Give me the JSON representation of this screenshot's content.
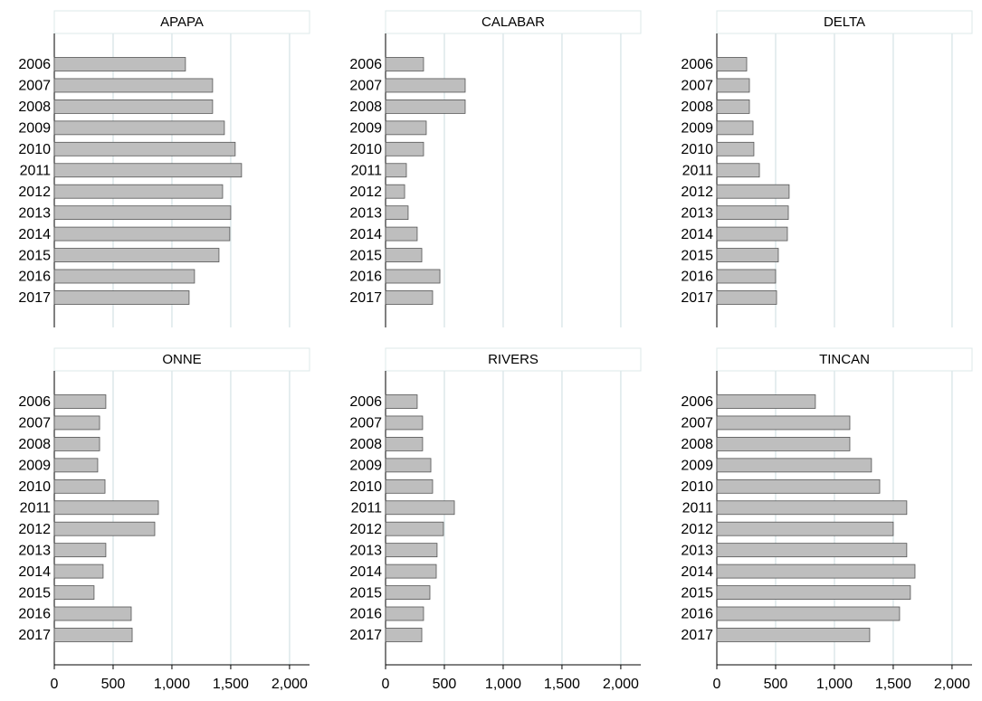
{
  "chart_data": [
    {
      "type": "bar",
      "orientation": "horizontal",
      "title": "APAPA",
      "color": "#bebebe",
      "grid": true,
      "categories": [
        "2006",
        "2007",
        "2008",
        "2009",
        "2010",
        "2011",
        "2012",
        "2013",
        "2014",
        "2015",
        "2016",
        "2017"
      ],
      "values": [
        1115,
        1346,
        1346,
        1446,
        1538,
        1592,
        1431,
        1500,
        1492,
        1400,
        1192,
        1146
      ],
      "xlim": [
        0,
        2170
      ],
      "xticks": [
        0,
        500,
        {
          "value": 1000,
          "label": "1,000"
        },
        {
          "value": 1500,
          "label": "1,500"
        },
        {
          "value": 2000,
          "label": "2,000"
        }
      ]
    },
    {
      "type": "bar",
      "orientation": "horizontal",
      "title": "CALABAR",
      "color": "#bebebe",
      "grid": true,
      "categories": [
        "2006",
        "2007",
        "2008",
        "2009",
        "2010",
        "2011",
        "2012",
        "2013",
        "2014",
        "2015",
        "2016",
        "2017"
      ],
      "values": [
        323,
        677,
        677,
        346,
        323,
        177,
        162,
        192,
        269,
        308,
        462,
        400
      ],
      "xlim": [
        0,
        2170
      ],
      "xticks": [
        0,
        500,
        {
          "value": 1000,
          "label": "1,000"
        },
        {
          "value": 1500,
          "label": "1,500"
        },
        {
          "value": 2000,
          "label": "2,000"
        }
      ]
    },
    {
      "type": "bar",
      "orientation": "horizontal",
      "title": "DELTA",
      "color": "#bebebe",
      "grid": true,
      "categories": [
        "2006",
        "2007",
        "2008",
        "2009",
        "2010",
        "2011",
        "2012",
        "2013",
        "2014",
        "2015",
        "2016",
        "2017"
      ],
      "values": [
        254,
        277,
        277,
        308,
        315,
        362,
        615,
        608,
        600,
        523,
        500,
        508
      ],
      "xlim": [
        0,
        2170
      ],
      "xticks": [
        0,
        500,
        {
          "value": 1000,
          "label": "1,000"
        },
        {
          "value": 1500,
          "label": "1,500"
        },
        {
          "value": 2000,
          "label": "2,000"
        }
      ]
    },
    {
      "type": "bar",
      "orientation": "horizontal",
      "title": "ONNE",
      "color": "#bebebe",
      "grid": true,
      "categories": [
        "2006",
        "2007",
        "2008",
        "2009",
        "2010",
        "2011",
        "2012",
        "2013",
        "2014",
        "2015",
        "2016",
        "2017"
      ],
      "values": [
        438,
        385,
        385,
        369,
        431,
        885,
        854,
        438,
        415,
        338,
        654,
        662
      ],
      "xlim": [
        0,
        2170
      ],
      "xticks": [
        0,
        500,
        {
          "value": 1000,
          "label": "1,000"
        },
        {
          "value": 1500,
          "label": "1,500"
        },
        {
          "value": 2000,
          "label": "2,000"
        }
      ]
    },
    {
      "type": "bar",
      "orientation": "horizontal",
      "title": "RIVERS",
      "color": "#bebebe",
      "grid": true,
      "categories": [
        "2006",
        "2007",
        "2008",
        "2009",
        "2010",
        "2011",
        "2012",
        "2013",
        "2014",
        "2015",
        "2016",
        "2017"
      ],
      "values": [
        269,
        315,
        315,
        385,
        400,
        585,
        492,
        438,
        431,
        377,
        323,
        308
      ],
      "xlim": [
        0,
        2170
      ],
      "xticks": [
        0,
        500,
        {
          "value": 1000,
          "label": "1,000"
        },
        {
          "value": 1500,
          "label": "1,500"
        },
        {
          "value": 2000,
          "label": "2,000"
        }
      ]
    },
    {
      "type": "bar",
      "orientation": "horizontal",
      "title": "TINCAN",
      "color": "#bebebe",
      "grid": true,
      "categories": [
        "2006",
        "2007",
        "2008",
        "2009",
        "2010",
        "2011",
        "2012",
        "2013",
        "2014",
        "2015",
        "2016",
        "2017"
      ],
      "values": [
        838,
        1131,
        1131,
        1315,
        1385,
        1615,
        1500,
        1615,
        1685,
        1646,
        1554,
        1300
      ],
      "xlim": [
        0,
        2170
      ],
      "xticks": [
        0,
        500,
        {
          "value": 1000,
          "label": "1,000"
        },
        {
          "value": 1500,
          "label": "1,500"
        },
        {
          "value": 2000,
          "label": "2,000"
        }
      ]
    }
  ]
}
